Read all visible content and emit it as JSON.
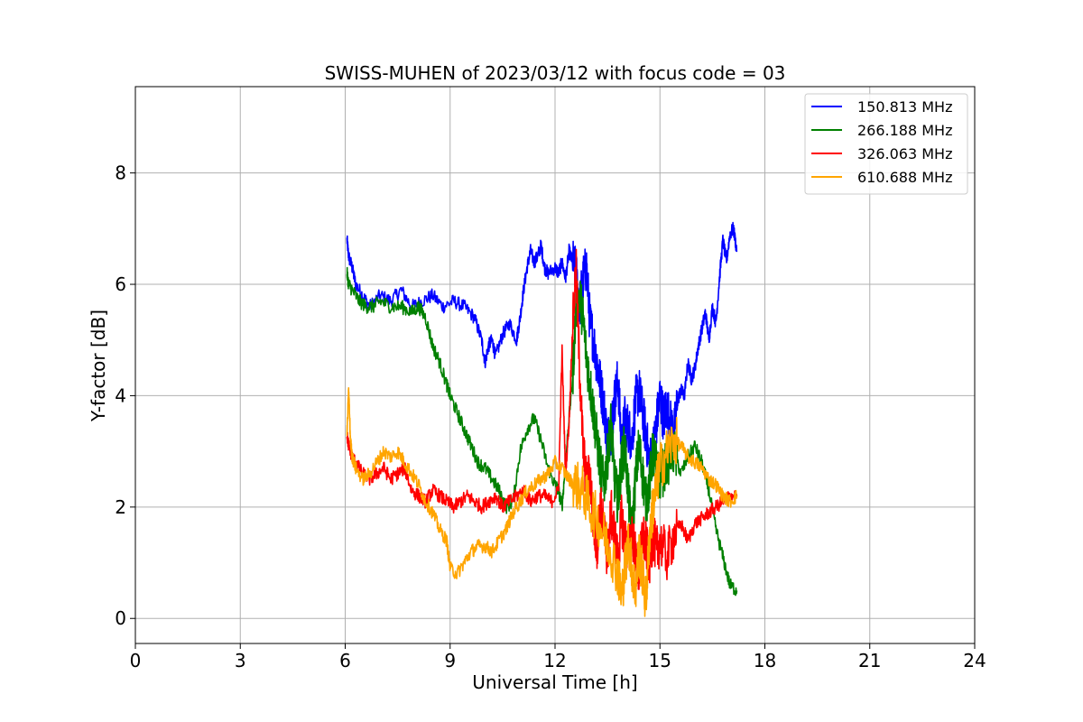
{
  "chart_data": {
    "type": "line",
    "title": "SWISS-MUHEN of 2023/03/12 with focus code = 03",
    "xlabel": "Universal Time [h]",
    "ylabel": "Y-factor [dB]",
    "xlim": [
      0,
      24
    ],
    "ylim": [
      -0.45,
      9.55
    ],
    "xticks": [
      0,
      3,
      6,
      9,
      12,
      15,
      18,
      21,
      24
    ],
    "yticks": [
      0,
      2,
      4,
      6,
      8
    ],
    "grid": true,
    "legend_position": "top-right",
    "series": [
      {
        "name": "150.813 MHz",
        "color": "#0000ff",
        "x": [
          6.05,
          6.1,
          6.2,
          6.3,
          6.5,
          6.7,
          7.0,
          7.3,
          7.6,
          7.9,
          8.2,
          8.5,
          8.8,
          9.1,
          9.4,
          9.7,
          9.9,
          10.0,
          10.1,
          10.2,
          10.3,
          10.5,
          10.7,
          10.9,
          11.0,
          11.1,
          11.2,
          11.3,
          11.4,
          11.5,
          11.6,
          11.7,
          11.8,
          12.0,
          12.1,
          12.2,
          12.3,
          12.4,
          12.5,
          12.6,
          12.7,
          12.8,
          12.9,
          13.0,
          13.1,
          13.2,
          13.3,
          13.4,
          13.5,
          13.6,
          13.7,
          13.8,
          13.9,
          14.0,
          14.1,
          14.2,
          14.3,
          14.4,
          14.5,
          14.6,
          14.7,
          14.8,
          14.9,
          15.0,
          15.1,
          15.2,
          15.3,
          15.4,
          15.5,
          15.6,
          15.7,
          15.8,
          15.9,
          16.0,
          16.1,
          16.2,
          16.3,
          16.4,
          16.5,
          16.6,
          16.7,
          16.8,
          16.9,
          17.0,
          17.1,
          17.2
        ],
        "y": [
          6.8,
          6.5,
          6.3,
          6.0,
          5.8,
          5.6,
          5.8,
          5.7,
          5.9,
          5.6,
          5.7,
          5.8,
          5.6,
          5.7,
          5.6,
          5.4,
          5.0,
          4.6,
          4.9,
          5.0,
          4.7,
          5.1,
          5.3,
          5.0,
          5.4,
          5.9,
          6.3,
          6.6,
          6.4,
          6.5,
          6.7,
          6.3,
          6.2,
          6.3,
          6.2,
          6.4,
          6.1,
          6.6,
          6.4,
          6.2,
          5.6,
          6.1,
          6.3,
          5.3,
          5.0,
          4.6,
          4.2,
          3.8,
          3.2,
          3.4,
          3.9,
          4.3,
          3.1,
          3.6,
          3.4,
          3.2,
          3.9,
          4.1,
          3.7,
          3.3,
          2.8,
          3.0,
          3.5,
          4.0,
          3.6,
          3.8,
          3.5,
          3.3,
          3.9,
          4.1,
          4.0,
          4.6,
          4.3,
          4.5,
          4.9,
          5.2,
          5.5,
          5.0,
          5.6,
          5.3,
          6.1,
          6.8,
          6.4,
          6.9,
          7.0,
          6.6
        ]
      },
      {
        "name": "266.188 MHz",
        "color": "#008000",
        "x": [
          6.05,
          6.1,
          6.2,
          6.4,
          6.6,
          6.8,
          7.0,
          7.3,
          7.6,
          7.9,
          8.1,
          8.3,
          8.5,
          8.7,
          8.9,
          9.0,
          9.2,
          9.4,
          9.6,
          9.8,
          10.0,
          10.2,
          10.4,
          10.6,
          10.8,
          11.0,
          11.2,
          11.4,
          11.6,
          11.8,
          12.0,
          12.1,
          12.2,
          12.3,
          12.4,
          12.5,
          12.6,
          12.7,
          12.8,
          12.9,
          13.0,
          13.1,
          13.2,
          13.3,
          13.4,
          13.5,
          13.6,
          13.7,
          13.8,
          13.9,
          14.0,
          14.1,
          14.2,
          14.3,
          14.4,
          14.5,
          14.6,
          14.7,
          14.8,
          14.9,
          15.0,
          15.2,
          15.4,
          15.6,
          15.8,
          16.0,
          16.2,
          16.4,
          16.6,
          16.8,
          17.0,
          17.2
        ],
        "y": [
          6.2,
          6.0,
          5.9,
          5.7,
          5.6,
          5.6,
          5.7,
          5.6,
          5.6,
          5.5,
          5.6,
          5.4,
          4.9,
          4.6,
          4.2,
          4.0,
          3.7,
          3.4,
          3.1,
          2.8,
          2.7,
          2.5,
          2.3,
          2.0,
          2.1,
          3.0,
          3.4,
          3.6,
          3.2,
          2.7,
          2.4,
          2.3,
          2.0,
          2.8,
          3.6,
          4.3,
          5.6,
          5.8,
          5.4,
          4.7,
          4.2,
          3.7,
          3.2,
          2.7,
          2.4,
          2.9,
          3.5,
          2.5,
          2.1,
          2.8,
          3.1,
          2.2,
          1.5,
          2.5,
          3.1,
          2.6,
          2.1,
          2.4,
          3.0,
          2.7,
          2.5,
          2.8,
          3.0,
          2.6,
          2.9,
          3.1,
          2.8,
          2.3,
          1.6,
          1.1,
          0.6,
          0.5
        ]
      },
      {
        "name": "326.063 MHz",
        "color": "#ff0000",
        "x": [
          6.05,
          6.1,
          6.2,
          6.3,
          6.5,
          6.7,
          6.9,
          7.1,
          7.3,
          7.5,
          7.7,
          7.9,
          8.1,
          8.3,
          8.5,
          8.7,
          8.9,
          9.1,
          9.3,
          9.5,
          9.7,
          9.9,
          10.1,
          10.3,
          10.5,
          10.7,
          10.9,
          11.1,
          11.3,
          11.5,
          11.7,
          11.9,
          12.1,
          12.2,
          12.3,
          12.4,
          12.5,
          12.6,
          12.7,
          12.8,
          12.9,
          13.0,
          13.1,
          13.2,
          13.3,
          13.4,
          13.5,
          13.6,
          13.7,
          13.8,
          13.9,
          14.0,
          14.1,
          14.2,
          14.3,
          14.4,
          14.5,
          14.6,
          14.7,
          14.8,
          14.9,
          15.0,
          15.2,
          15.4,
          15.6,
          15.8,
          16.0,
          16.2,
          16.4,
          16.6,
          16.8,
          17.0,
          17.2
        ],
        "y": [
          3.3,
          3.1,
          2.9,
          2.8,
          2.6,
          2.5,
          2.6,
          2.7,
          2.5,
          2.6,
          2.7,
          2.3,
          2.2,
          2.1,
          2.3,
          2.2,
          2.1,
          2.0,
          2.1,
          2.2,
          2.1,
          2.0,
          2.1,
          2.2,
          2.0,
          2.1,
          2.2,
          2.3,
          2.1,
          2.2,
          2.2,
          2.1,
          2.3,
          4.8,
          2.6,
          3.5,
          5.2,
          6.3,
          4.5,
          3.1,
          2.4,
          2.6,
          1.7,
          1.3,
          2.0,
          1.6,
          1.1,
          1.9,
          1.5,
          1.0,
          1.8,
          1.4,
          1.2,
          1.6,
          1.1,
          0.8,
          1.5,
          1.3,
          1.0,
          1.5,
          1.2,
          1.4,
          1.1,
          1.5,
          1.7,
          1.4,
          1.7,
          1.8,
          1.9,
          2.0,
          2.1,
          2.2,
          2.2
        ]
      },
      {
        "name": "610.688 MHz",
        "color": "#ffa500",
        "x": [
          6.05,
          6.1,
          6.15,
          6.2,
          6.3,
          6.5,
          6.7,
          6.9,
          7.1,
          7.3,
          7.5,
          7.7,
          7.9,
          8.1,
          8.3,
          8.5,
          8.7,
          8.9,
          9.0,
          9.2,
          9.4,
          9.6,
          9.8,
          10.0,
          10.2,
          10.4,
          10.6,
          10.8,
          11.0,
          11.2,
          11.4,
          11.6,
          11.8,
          12.0,
          12.2,
          12.4,
          12.6,
          12.8,
          13.0,
          13.2,
          13.4,
          13.6,
          13.8,
          13.9,
          14.0,
          14.1,
          14.2,
          14.3,
          14.4,
          14.5,
          14.6,
          14.7,
          14.8,
          14.9,
          15.0,
          15.2,
          15.4,
          15.6,
          15.8,
          16.0,
          16.2,
          16.4,
          16.6,
          16.8,
          17.0,
          17.2
        ],
        "y": [
          3.3,
          4.1,
          3.2,
          2.9,
          2.7,
          2.5,
          2.6,
          2.8,
          3.0,
          2.9,
          3.0,
          2.8,
          2.6,
          2.4,
          2.1,
          1.9,
          1.6,
          1.4,
          0.9,
          0.8,
          1.0,
          1.2,
          1.3,
          1.3,
          1.2,
          1.4,
          1.6,
          1.9,
          2.1,
          2.3,
          2.4,
          2.5,
          2.6,
          2.8,
          2.7,
          2.5,
          2.4,
          2.3,
          2.0,
          1.8,
          1.5,
          1.2,
          0.8,
          0.4,
          0.9,
          1.4,
          0.9,
          0.5,
          1.2,
          0.8,
          0.3,
          1.5,
          2.0,
          2.4,
          2.7,
          3.0,
          3.2,
          3.1,
          2.9,
          2.8,
          2.7,
          2.5,
          2.4,
          2.2,
          2.1,
          2.2
        ]
      }
    ]
  }
}
